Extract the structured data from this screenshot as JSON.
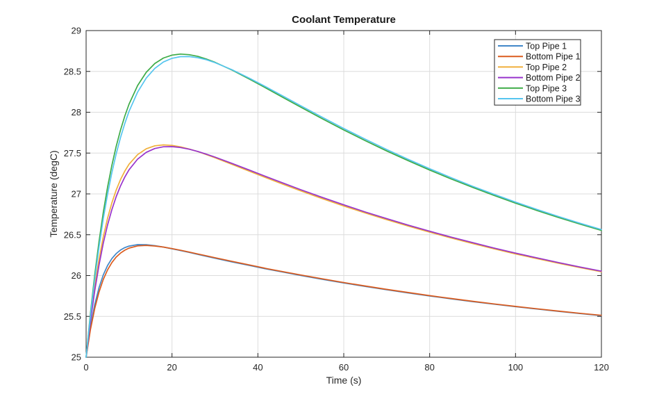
{
  "figure": {
    "background": "#ffffff"
  },
  "colors": {
    "axis": "#262626",
    "grid": "#dcdcdc",
    "tick_label": "#262626",
    "title": "#1a1a1a",
    "legend_border": "#262626",
    "legend_background": "#ffffff"
  },
  "chart_data": {
    "type": "line",
    "title": "Coolant Temperature",
    "xlabel": "Time (s)",
    "ylabel": "Temperature (degC)",
    "xlim": [
      0,
      120
    ],
    "ylim": [
      25,
      29
    ],
    "xticks": [
      0,
      20,
      40,
      60,
      80,
      100,
      120
    ],
    "yticks": [
      25,
      25.5,
      26,
      26.5,
      27,
      27.5,
      28,
      28.5,
      29
    ],
    "grid": true,
    "legend_position": "top-right",
    "x": [
      0,
      1,
      2,
      3,
      4,
      5,
      6,
      7,
      8,
      9,
      10,
      12,
      14,
      16,
      18,
      20,
      22,
      24,
      26,
      28,
      30,
      34,
      38,
      42,
      46,
      50,
      55,
      60,
      65,
      70,
      75,
      80,
      85,
      90,
      95,
      100,
      105,
      110,
      115,
      120
    ],
    "series": [
      {
        "name": "Top Pipe 1",
        "color": "#4187C8",
        "values": [
          25.0,
          25.368,
          25.645,
          25.853,
          26.008,
          26.123,
          26.208,
          26.269,
          26.312,
          26.342,
          26.361,
          26.379,
          26.378,
          26.366,
          26.349,
          26.328,
          26.306,
          26.283,
          26.259,
          26.236,
          26.213,
          26.167,
          26.124,
          26.08,
          26.041,
          26.001,
          25.954,
          25.909,
          25.867,
          25.826,
          25.787,
          25.75,
          25.715,
          25.681,
          25.649,
          25.619,
          25.59,
          25.562,
          25.535,
          25.51
        ]
      },
      {
        "name": "Bottom Pipe 1",
        "color": "#DB5B1D",
        "values": [
          25.0,
          25.337,
          25.597,
          25.798,
          25.952,
          26.07,
          26.159,
          26.226,
          26.275,
          26.311,
          26.336,
          26.363,
          26.369,
          26.362,
          26.349,
          26.33,
          26.31,
          26.288,
          26.265,
          26.242,
          26.219,
          26.174,
          26.13,
          26.086,
          26.046,
          26.007,
          25.96,
          25.914,
          25.872,
          25.831,
          25.792,
          25.754,
          25.719,
          25.685,
          25.653,
          25.622,
          25.593,
          25.565,
          25.538,
          25.513
        ]
      },
      {
        "name": "Top Pipe 2",
        "color": "#F0AF3A",
        "values": [
          25.0,
          25.472,
          25.868,
          26.198,
          26.473,
          26.702,
          26.891,
          27.047,
          27.175,
          27.279,
          27.363,
          27.482,
          27.552,
          27.589,
          27.6,
          27.594,
          27.576,
          27.55,
          27.518,
          27.481,
          27.443,
          27.361,
          27.278,
          27.196,
          27.115,
          27.037,
          26.942,
          26.852,
          26.766,
          26.684,
          26.606,
          26.531,
          26.46,
          26.392,
          26.327,
          26.265,
          26.207,
          26.151,
          26.097,
          26.046
        ]
      },
      {
        "name": "Bottom Pipe 2",
        "color": "#9833CC",
        "values": [
          25.0,
          25.44,
          25.813,
          26.129,
          26.395,
          26.62,
          26.808,
          26.966,
          27.097,
          27.206,
          27.295,
          27.426,
          27.509,
          27.556,
          27.577,
          27.579,
          27.568,
          27.547,
          27.52,
          27.487,
          27.451,
          27.373,
          27.292,
          27.21,
          27.13,
          27.051,
          26.957,
          26.866,
          26.779,
          26.697,
          26.618,
          26.543,
          26.471,
          26.403,
          26.337,
          26.275,
          26.216,
          26.159,
          26.105,
          26.054
        ]
      },
      {
        "name": "Top Pipe 3",
        "color": "#3DAB47",
        "values": [
          25.0,
          25.538,
          26.008,
          26.417,
          26.773,
          27.083,
          27.351,
          27.582,
          27.781,
          27.953,
          28.099,
          28.328,
          28.489,
          28.597,
          28.664,
          28.7,
          28.712,
          28.705,
          28.684,
          28.652,
          28.612,
          28.516,
          28.407,
          28.293,
          28.177,
          28.061,
          27.92,
          27.783,
          27.652,
          27.526,
          27.407,
          27.292,
          27.183,
          27.08,
          26.981,
          26.887,
          26.797,
          26.711,
          26.63,
          26.552
        ]
      },
      {
        "name": "Bottom Pipe 3",
        "color": "#55C5EF",
        "values": [
          25.0,
          25.509,
          25.957,
          26.35,
          26.695,
          26.997,
          27.26,
          27.49,
          27.689,
          27.862,
          28.011,
          28.248,
          28.419,
          28.537,
          28.615,
          28.66,
          28.681,
          28.682,
          28.668,
          28.643,
          28.608,
          28.52,
          28.417,
          28.307,
          28.193,
          28.079,
          27.938,
          27.801,
          27.67,
          27.544,
          27.423,
          27.308,
          27.199,
          27.094,
          26.995,
          26.9,
          26.809,
          26.723,
          26.641,
          26.563
        ]
      }
    ]
  }
}
